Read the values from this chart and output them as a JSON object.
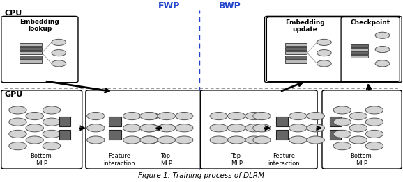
{
  "title": "Figure 1: Training process of DLRM",
  "fwp_label": "FWP",
  "bwp_label": "BWP",
  "cpu_label": "CPU",
  "gpu_label": "GPU",
  "bg_color": "#ffffff",
  "node_color": "#d4d4d4",
  "node_edge": "#555555",
  "bar_dark": "#666666",
  "bar_light": "#bbbbbb",
  "box_edge": "#000000",
  "arrow_color": "#000000",
  "divider_color": "#2244cc",
  "hline_color": "#999999",
  "caption_color": "#000000"
}
